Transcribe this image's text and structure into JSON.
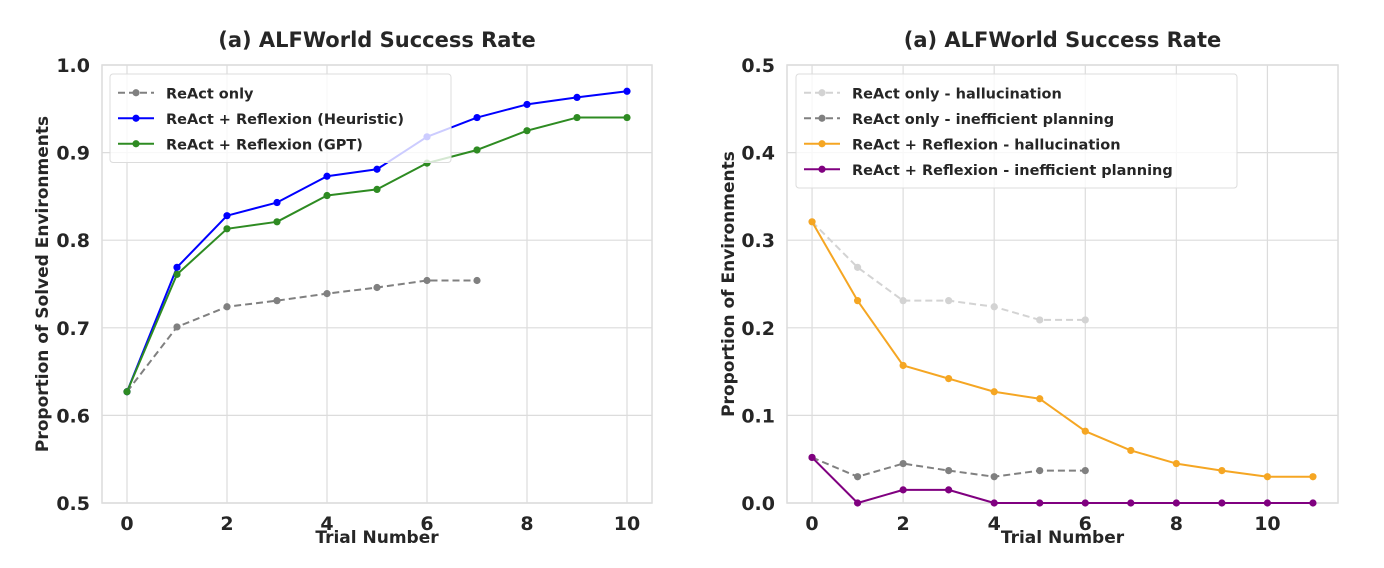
{
  "chart_data": [
    {
      "type": "line",
      "title": "(a) ALFWorld Success Rate",
      "xlabel": "Trial Number",
      "ylabel": "Proportion of Solved Environments",
      "xlim": [
        -0.5,
        10.5
      ],
      "ylim": [
        0.5,
        1.0
      ],
      "xticks": [
        0,
        2,
        4,
        6,
        8,
        10
      ],
      "yticks": [
        0.5,
        0.6,
        0.7,
        0.8,
        0.9,
        1.0
      ],
      "ytick_labels": [
        "0.5",
        "0.6",
        "0.7",
        "0.8",
        "0.9",
        "1.0"
      ],
      "grid": true,
      "legend_position": "top-left",
      "series": [
        {
          "name": "ReAct only",
          "color": "#808080",
          "dashed": true,
          "x": [
            0,
            1,
            2,
            3,
            4,
            5,
            6,
            7
          ],
          "values": [
            0.627,
            0.701,
            0.724,
            0.731,
            0.739,
            0.746,
            0.754,
            0.754
          ]
        },
        {
          "name": "ReAct + Reflexion (Heuristic)",
          "color": "#0000ff",
          "dashed": false,
          "x": [
            0,
            1,
            2,
            3,
            4,
            5,
            6,
            7,
            8,
            9,
            10
          ],
          "values": [
            0.627,
            0.769,
            0.828,
            0.843,
            0.873,
            0.881,
            0.918,
            0.94,
            0.955,
            0.963,
            0.97
          ]
        },
        {
          "name": "ReAct + Reflexion (GPT)",
          "color": "#2e8b22",
          "dashed": false,
          "x": [
            0,
            1,
            2,
            3,
            4,
            5,
            6,
            7,
            8,
            9,
            10
          ],
          "values": [
            0.627,
            0.761,
            0.813,
            0.821,
            0.851,
            0.858,
            0.888,
            0.903,
            0.925,
            0.94,
            0.94
          ]
        }
      ]
    },
    {
      "type": "line",
      "title": "(a) ALFWorld Success Rate",
      "xlabel": "Trial Number",
      "ylabel": "Proportion of Environments",
      "xlim": [
        -0.55,
        11.55
      ],
      "ylim": [
        0.0,
        0.5
      ],
      "xticks": [
        0,
        2,
        4,
        6,
        8,
        10
      ],
      "yticks": [
        0.0,
        0.1,
        0.2,
        0.3,
        0.4,
        0.5
      ],
      "ytick_labels": [
        "0.0",
        "0.1",
        "0.2",
        "0.3",
        "0.4",
        "0.5"
      ],
      "grid": true,
      "legend_position": "top-left",
      "series": [
        {
          "name": "ReAct only - hallucination",
          "color": "#d3d3d3",
          "dashed": true,
          "x": [
            0,
            1,
            2,
            3,
            4,
            5,
            6
          ],
          "values": [
            0.321,
            0.269,
            0.231,
            0.231,
            0.224,
            0.209,
            0.209
          ]
        },
        {
          "name": "ReAct only - inefficient planning",
          "color": "#808080",
          "dashed": true,
          "x": [
            0,
            1,
            2,
            3,
            4,
            5,
            6
          ],
          "values": [
            0.052,
            0.03,
            0.045,
            0.037,
            0.03,
            0.037,
            0.037
          ]
        },
        {
          "name": "ReAct + Reflexion - hallucination",
          "color": "#f5a623",
          "dashed": false,
          "x": [
            0,
            1,
            2,
            3,
            4,
            5,
            6,
            7,
            8,
            9,
            10,
            11
          ],
          "values": [
            0.321,
            0.231,
            0.157,
            0.142,
            0.127,
            0.119,
            0.082,
            0.06,
            0.045,
            0.037,
            0.03,
            0.03
          ]
        },
        {
          "name": "ReAct + Reflexion - inefficient planning",
          "color": "#800080",
          "dashed": false,
          "x": [
            0,
            1,
            2,
            3,
            4,
            5,
            6,
            7,
            8,
            9,
            10,
            11
          ],
          "values": [
            0.052,
            0.0,
            0.015,
            0.015,
            0.0,
            0.0,
            0.0,
            0.0,
            0.0,
            0.0,
            0.0,
            0.0
          ]
        }
      ]
    }
  ]
}
